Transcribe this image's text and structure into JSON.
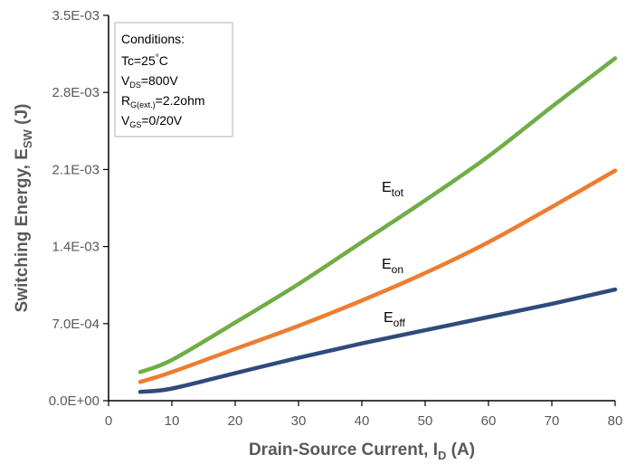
{
  "chart_data": {
    "type": "line",
    "xlabel_parts": [
      "Drain-Source Current, I",
      "D",
      " (A)"
    ],
    "ylabel_parts": [
      "Switching Energy, E",
      "SW",
      " (J)"
    ],
    "xlim": [
      0,
      80
    ],
    "ylim": [
      0,
      0.0035
    ],
    "x_ticks": [
      0,
      10,
      20,
      30,
      40,
      50,
      60,
      70,
      80
    ],
    "x_tick_labels": [
      "0",
      "10",
      "20",
      "30",
      "40",
      "50",
      "60",
      "70",
      "80"
    ],
    "y_ticks": [
      0,
      0.0007,
      0.0014,
      0.0021,
      0.0028,
      0.0035
    ],
    "y_tick_labels": [
      "0.0E+00",
      "7.0E-04",
      "1.4E-03",
      "2.1E-03",
      "2.8E-03",
      "3.5E-03"
    ],
    "grid": false,
    "conditions": {
      "title": "Conditions:",
      "tc": {
        "main": "Tc=25",
        "sup": "°",
        "tail": "C"
      },
      "vds": {
        "main": "V",
        "sub": "DS",
        "tail": "=800V"
      },
      "rg": {
        "main": "R",
        "sub": "G(ext.)",
        "tail": "=2.2ohm"
      },
      "vgs": {
        "main": "V",
        "sub": "GS",
        "tail": "=0/20V"
      }
    },
    "series": [
      {
        "name": "E_tot",
        "label_main": "E",
        "label_sub": "tot",
        "color": "#70ad47",
        "x": [
          5,
          10,
          20,
          30,
          40,
          50,
          60,
          70,
          80
        ],
        "y": [
          0.00026,
          0.00037,
          0.00071,
          0.00106,
          0.00144,
          0.00182,
          0.00222,
          0.00267,
          0.00311
        ]
      },
      {
        "name": "E_on",
        "label_main": "E",
        "label_sub": "on",
        "color": "#ed7d31",
        "x": [
          5,
          10,
          20,
          30,
          40,
          50,
          60,
          70,
          80
        ],
        "y": [
          0.00017,
          0.00026,
          0.00047,
          0.00068,
          0.00091,
          0.00116,
          0.00144,
          0.00176,
          0.00209
        ]
      },
      {
        "name": "E_off",
        "label_main": "E",
        "label_sub": "off",
        "color": "#2f4b7c",
        "x": [
          5,
          10,
          20,
          30,
          40,
          50,
          60,
          70,
          80
        ],
        "y": [
          8e-05,
          0.00011,
          0.00025,
          0.00039,
          0.00052,
          0.00064,
          0.00076,
          0.00088,
          0.00101
        ]
      }
    ]
  }
}
